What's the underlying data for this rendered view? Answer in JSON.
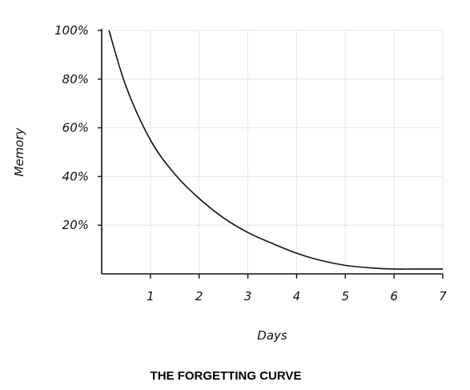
{
  "chart_data": {
    "type": "line",
    "title": "THE FORGETTING CURVE",
    "xlabel": "Days",
    "ylabel": "Memory",
    "xlim": [
      0,
      7
    ],
    "ylim": [
      0,
      100
    ],
    "x_ticks": [
      1,
      2,
      3,
      4,
      5,
      6,
      7
    ],
    "x_tick_labels": [
      "1",
      "2",
      "3",
      "4",
      "5",
      "6",
      "7"
    ],
    "y_ticks": [
      20,
      40,
      60,
      80,
      100
    ],
    "y_tick_labels": [
      "20%",
      "40%",
      "60%",
      "80%",
      "100%"
    ],
    "grid": true,
    "series": [
      {
        "color": "#111111",
        "x": [
          0.15,
          0.5,
          1,
          1.5,
          2,
          2.5,
          3,
          3.5,
          4,
          4.5,
          5,
          5.5,
          6,
          6.5,
          7
        ],
        "y": [
          100,
          77,
          55,
          41,
          31,
          23,
          17,
          12.5,
          8.5,
          5.5,
          3.5,
          2.5,
          2,
          2,
          2
        ]
      }
    ]
  }
}
